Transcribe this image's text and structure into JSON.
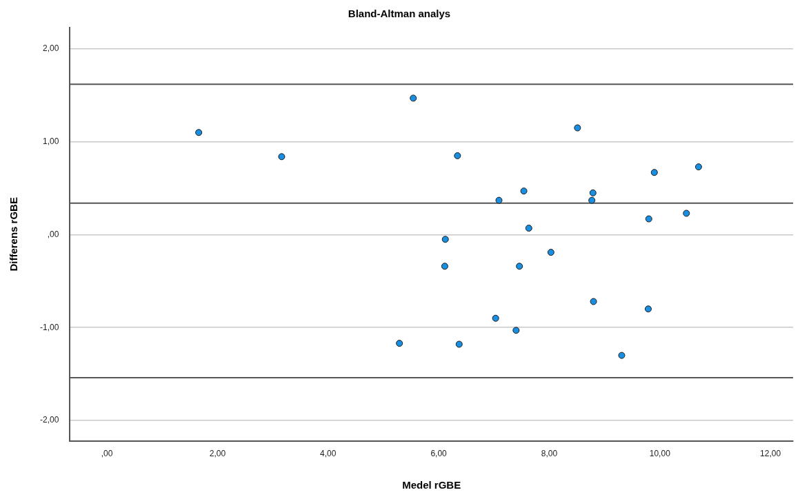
{
  "chart_data": {
    "type": "scatter",
    "title": "Bland-Altman analys",
    "xlabel": "Medel rGBE",
    "ylabel": "Differens rGBE",
    "x": [
      1.66,
      3.16,
      5.54,
      8.51,
      6.34,
      9.9,
      10.7,
      7.54,
      8.79,
      7.09,
      8.77,
      9.8,
      10.48,
      7.63,
      6.12,
      8.03,
      6.11,
      7.46,
      8.8,
      9.79,
      7.03,
      7.4,
      5.29,
      6.37,
      9.31
    ],
    "series": [
      {
        "color": "#1a8ee0",
        "values": [
          1.1,
          0.84,
          1.47,
          1.15,
          0.85,
          0.67,
          0.73,
          0.47,
          0.45,
          0.37,
          0.37,
          0.17,
          0.23,
          0.07,
          -0.05,
          -0.19,
          -0.34,
          -0.34,
          -0.72,
          -0.8,
          -0.9,
          -1.03,
          -1.17,
          -1.18,
          -1.3
        ]
      }
    ],
    "xlim": [
      -0.67,
      12.41
    ],
    "ylim": [
      -2.22,
      2.23
    ],
    "xticks": [
      {
        "value": 0,
        "label": ",00"
      },
      {
        "value": 2,
        "label": "2,00"
      },
      {
        "value": 4,
        "label": "4,00"
      },
      {
        "value": 6,
        "label": "6,00"
      },
      {
        "value": 8,
        "label": "8,00"
      },
      {
        "value": 10,
        "label": "10,00"
      },
      {
        "value": 12,
        "label": "12,00"
      }
    ],
    "yticks": [
      {
        "value": -2,
        "label": "-2,00"
      },
      {
        "value": -1,
        "label": "-1,00"
      },
      {
        "value": 0,
        "label": ",00"
      },
      {
        "value": 1,
        "label": "1,00"
      },
      {
        "value": 2,
        "label": "2,00"
      }
    ],
    "ref_lines": [
      {
        "axis": "y",
        "value": 1.62,
        "color": "#555555"
      },
      {
        "axis": "y",
        "value": 0.34,
        "color": "#555555"
      },
      {
        "axis": "y",
        "value": -1.54,
        "color": "#555555"
      }
    ],
    "grid": "y",
    "legend": false,
    "marker": "circle"
  }
}
